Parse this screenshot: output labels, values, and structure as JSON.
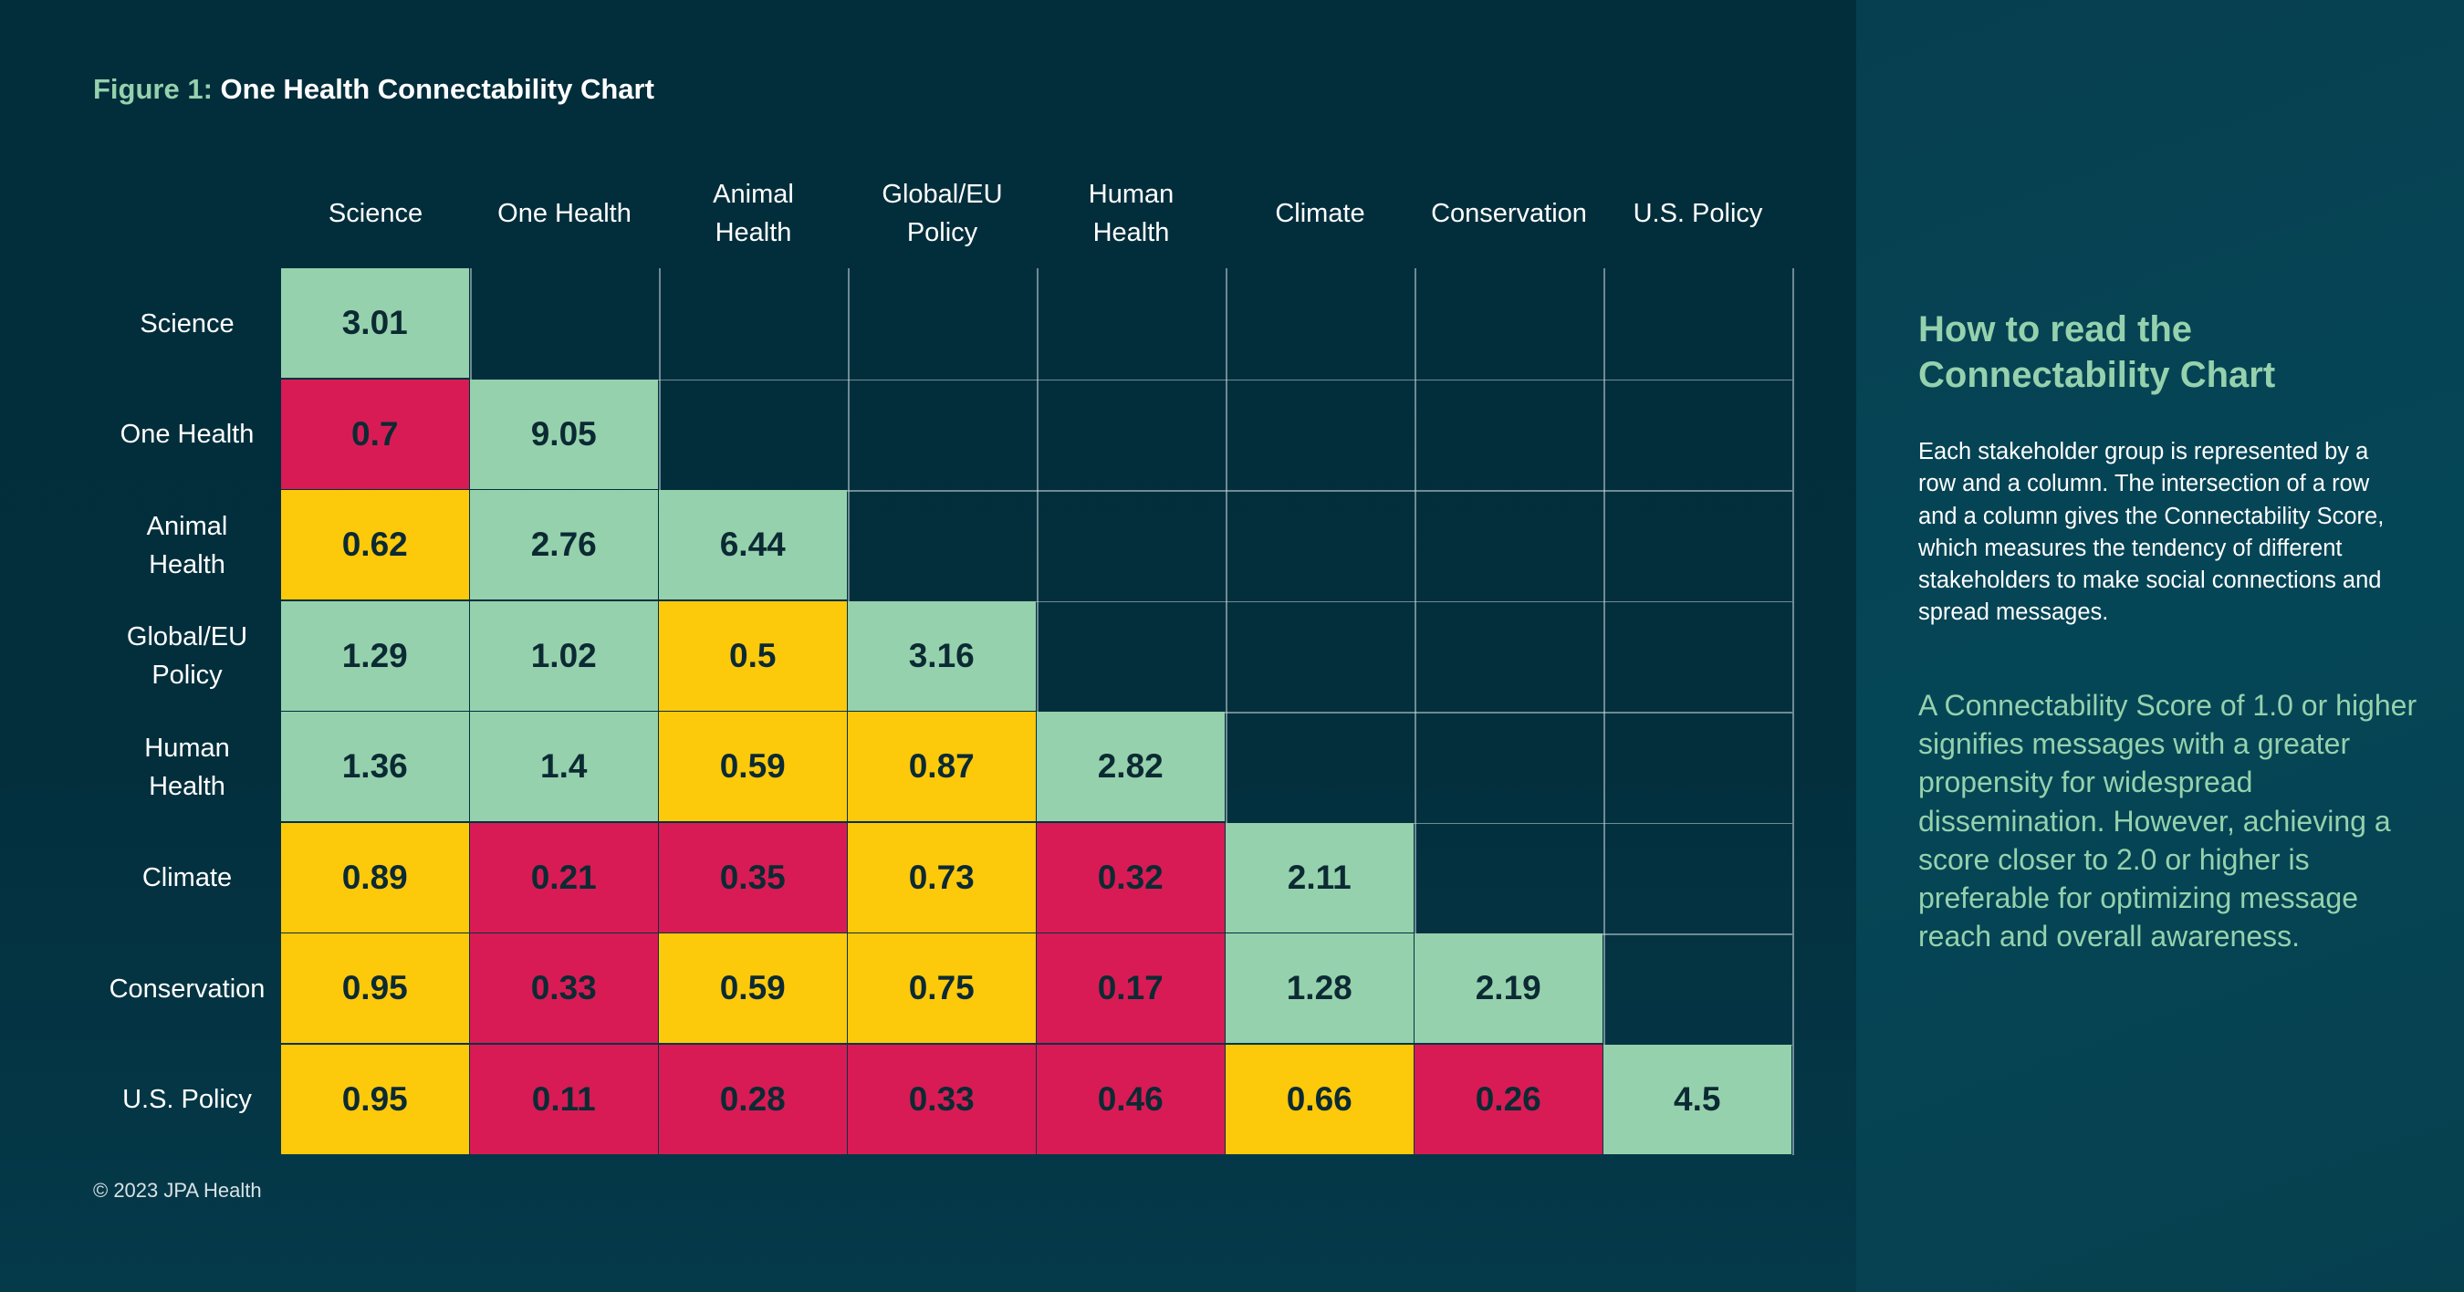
{
  "figure": {
    "label": "Figure 1:",
    "title": "One Health Connectability Chart"
  },
  "copyright": "© 2023 JPA Health",
  "sidebar": {
    "title": "How to read the Connectability Chart",
    "body": "Each stakeholder group is represented by a row and a column. The intersection of a row and a column gives the Connectability Score, which measures the tendency of different stakeholders to make social connections and spread messages.",
    "note": "A Connectability Score of 1.0 or higher signifies messages with a greater propensity for widespread dissemination. However, achieving a score closer to 2.0 or higher is preferable for optimizing message reach and overall awareness."
  },
  "chart_data": {
    "type": "heatmap",
    "title": "One Health Connectability Chart",
    "columns": [
      "Science",
      "One Health",
      "Animal\nHealth",
      "Global/EU\nPolicy",
      "Human\nHealth",
      "Climate",
      "Conservation",
      "U.S. Policy"
    ],
    "rows": [
      "Science",
      "One Health",
      "Animal\nHealth",
      "Global/EU\nPolicy",
      "Human\nHealth",
      "Climate",
      "Conservation",
      "U.S. Policy"
    ],
    "values": [
      [
        3.01
      ],
      [
        0.7,
        9.05
      ],
      [
        0.62,
        2.76,
        6.44
      ],
      [
        1.29,
        1.02,
        0.5,
        3.16
      ],
      [
        1.36,
        1.4,
        0.59,
        0.87,
        2.82
      ],
      [
        0.89,
        0.21,
        0.35,
        0.73,
        0.32,
        2.11
      ],
      [
        0.95,
        0.33,
        0.59,
        0.75,
        0.17,
        1.28,
        2.19
      ],
      [
        0.95,
        0.11,
        0.28,
        0.33,
        0.46,
        0.66,
        0.26,
        4.5
      ]
    ],
    "categories": [
      [
        "g"
      ],
      [
        "r",
        "g"
      ],
      [
        "y",
        "g",
        "g"
      ],
      [
        "g",
        "g",
        "y",
        "g"
      ],
      [
        "g",
        "g",
        "y",
        "y",
        "g"
      ],
      [
        "y",
        "r",
        "r",
        "y",
        "r",
        "g"
      ],
      [
        "y",
        "r",
        "y",
        "y",
        "r",
        "g",
        "g"
      ],
      [
        "y",
        "r",
        "r",
        "r",
        "r",
        "y",
        "r",
        "g"
      ]
    ],
    "colors": {
      "g": "#95d1ad",
      "y": "#fdc90b",
      "r": "#d81b55"
    },
    "layout": "lower-triangular matrix",
    "grid": true
  }
}
